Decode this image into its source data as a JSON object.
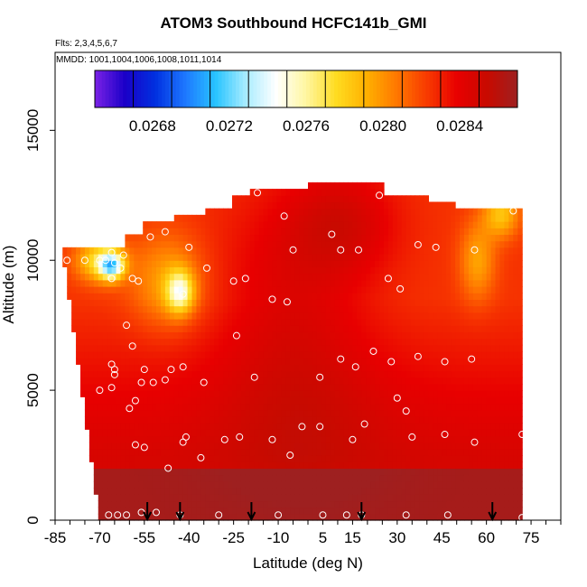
{
  "chart_data": {
    "type": "heatmap",
    "title": "ATOM3 Southbound HCFC141b_GMI",
    "flights": "Flts: 2,3,4,5,6,7",
    "dates": "MMDD: 1001,1004,1006,1008,1011,1014",
    "xlabel": "Latitude (deg N)",
    "ylabel": "Altitude (m)",
    "xlim": [
      -85,
      85
    ],
    "ylim": [
      0,
      18000
    ],
    "xticks": [
      -85,
      -70,
      -55,
      -40,
      -25,
      -10,
      5,
      15,
      30,
      45,
      60,
      75
    ],
    "xtick_labels": [
      "-85",
      "-70",
      "-55",
      "-40",
      "-25",
      "-10",
      "5",
      "15",
      "30",
      "45",
      "60",
      "75"
    ],
    "yticks": [
      0,
      5000,
      10000,
      15000
    ],
    "ytick_labels": [
      "0",
      "5000",
      "10000",
      "15000"
    ],
    "colorbar": {
      "min": 0.0265,
      "max": 0.0287,
      "ticks": [
        0.0268,
        0.0272,
        0.0276,
        0.028,
        0.0284
      ],
      "tick_labels": [
        "0.0268",
        "0.0272",
        "0.0276",
        "0.0280",
        "0.0284"
      ],
      "colors": [
        "#7b22e6",
        "#1a00c8",
        "#0030e0",
        "#1e78ff",
        "#28c4ff",
        "#a8ecff",
        "#ffffff",
        "#fff6a0",
        "#ffdc20",
        "#ffb000",
        "#ff7800",
        "#f83a00",
        "#e80000",
        "#c80a00",
        "#9e2020"
      ]
    },
    "surface_markers_lat": [
      -54,
      -43,
      -19,
      18,
      62
    ],
    "samples": [
      {
        "lat": -67,
        "alt": 200
      },
      {
        "lat": -64,
        "alt": 200
      },
      {
        "lat": -61,
        "alt": 200
      },
      {
        "lat": -56,
        "alt": 300
      },
      {
        "lat": -51,
        "alt": 300
      },
      {
        "lat": -43,
        "alt": 200
      },
      {
        "lat": -30,
        "alt": 200
      },
      {
        "lat": -10,
        "alt": 200
      },
      {
        "lat": 5,
        "alt": 200
      },
      {
        "lat": 13,
        "alt": 200
      },
      {
        "lat": 18,
        "alt": 200
      },
      {
        "lat": 33,
        "alt": 200
      },
      {
        "lat": 47,
        "alt": 200
      },
      {
        "lat": 72,
        "alt": 100
      },
      {
        "lat": -58,
        "alt": 2900
      },
      {
        "lat": -55,
        "alt": 2800
      },
      {
        "lat": -42,
        "alt": 3000
      },
      {
        "lat": -41,
        "alt": 3200
      },
      {
        "lat": -28,
        "alt": 3100
      },
      {
        "lat": -23,
        "alt": 3200
      },
      {
        "lat": -12,
        "alt": 3100
      },
      {
        "lat": -2,
        "alt": 3600
      },
      {
        "lat": 4,
        "alt": 3600
      },
      {
        "lat": 15,
        "alt": 3100
      },
      {
        "lat": 19,
        "alt": 3700
      },
      {
        "lat": 35,
        "alt": 3200
      },
      {
        "lat": 46,
        "alt": 3300
      },
      {
        "lat": 56,
        "alt": 3000
      },
      {
        "lat": 72,
        "alt": 3300
      },
      {
        "lat": -47,
        "alt": 2000
      },
      {
        "lat": -36,
        "alt": 2400
      },
      {
        "lat": -6,
        "alt": 2500
      },
      {
        "lat": -70,
        "alt": 5000
      },
      {
        "lat": -66,
        "alt": 5100
      },
      {
        "lat": -65,
        "alt": 5600
      },
      {
        "lat": -60,
        "alt": 4300
      },
      {
        "lat": -58,
        "alt": 4600
      },
      {
        "lat": -56,
        "alt": 5300
      },
      {
        "lat": -52,
        "alt": 5300
      },
      {
        "lat": -48,
        "alt": 5400
      },
      {
        "lat": -46,
        "alt": 5800
      },
      {
        "lat": -42,
        "alt": 5900
      },
      {
        "lat": -35,
        "alt": 5300
      },
      {
        "lat": -18,
        "alt": 5500
      },
      {
        "lat": 4,
        "alt": 5500
      },
      {
        "lat": 30,
        "alt": 4700
      },
      {
        "lat": 33,
        "alt": 4200
      },
      {
        "lat": -66,
        "alt": 6000
      },
      {
        "lat": -65,
        "alt": 5800
      },
      {
        "lat": -55,
        "alt": 5800
      },
      {
        "lat": -24,
        "alt": 7100
      },
      {
        "lat": 11,
        "alt": 6200
      },
      {
        "lat": 16,
        "alt": 5900
      },
      {
        "lat": 22,
        "alt": 6500
      },
      {
        "lat": 28,
        "alt": 6100
      },
      {
        "lat": 37,
        "alt": 6300
      },
      {
        "lat": 46,
        "alt": 6100
      },
      {
        "lat": 55,
        "alt": 6200
      },
      {
        "lat": -61,
        "alt": 7500
      },
      {
        "lat": -59,
        "alt": 6700
      },
      {
        "lat": -12,
        "alt": 8500
      },
      {
        "lat": -7,
        "alt": 8400
      },
      {
        "lat": 31,
        "alt": 8900
      },
      {
        "lat": -66,
        "alt": 9300
      },
      {
        "lat": -65,
        "alt": 9900
      },
      {
        "lat": -63,
        "alt": 9700
      },
      {
        "lat": -59,
        "alt": 9300
      },
      {
        "lat": -57,
        "alt": 9200
      },
      {
        "lat": -42,
        "alt": 8700
      },
      {
        "lat": -34,
        "alt": 9700
      },
      {
        "lat": -25,
        "alt": 9200
      },
      {
        "lat": -21,
        "alt": 9300
      },
      {
        "lat": 27,
        "alt": 9300
      },
      {
        "lat": -81,
        "alt": 10000
      },
      {
        "lat": -75,
        "alt": 10000
      },
      {
        "lat": -70,
        "alt": 10000
      },
      {
        "lat": -68,
        "alt": 10000
      },
      {
        "lat": -66,
        "alt": 10300
      },
      {
        "lat": -62,
        "alt": 10200
      },
      {
        "lat": -53,
        "alt": 10900
      },
      {
        "lat": -48,
        "alt": 11100
      },
      {
        "lat": -40,
        "alt": 10500
      },
      {
        "lat": -5,
        "alt": 10400
      },
      {
        "lat": 8,
        "alt": 11000
      },
      {
        "lat": 11,
        "alt": 10400
      },
      {
        "lat": 17,
        "alt": 10400
      },
      {
        "lat": 37,
        "alt": 10600
      },
      {
        "lat": 43,
        "alt": 10500
      },
      {
        "lat": 56,
        "alt": 10400
      },
      {
        "lat": -17,
        "alt": 12600
      },
      {
        "lat": -8,
        "alt": 11700
      },
      {
        "lat": 24,
        "alt": 12500
      },
      {
        "lat": 69,
        "alt": 11900
      }
    ]
  }
}
